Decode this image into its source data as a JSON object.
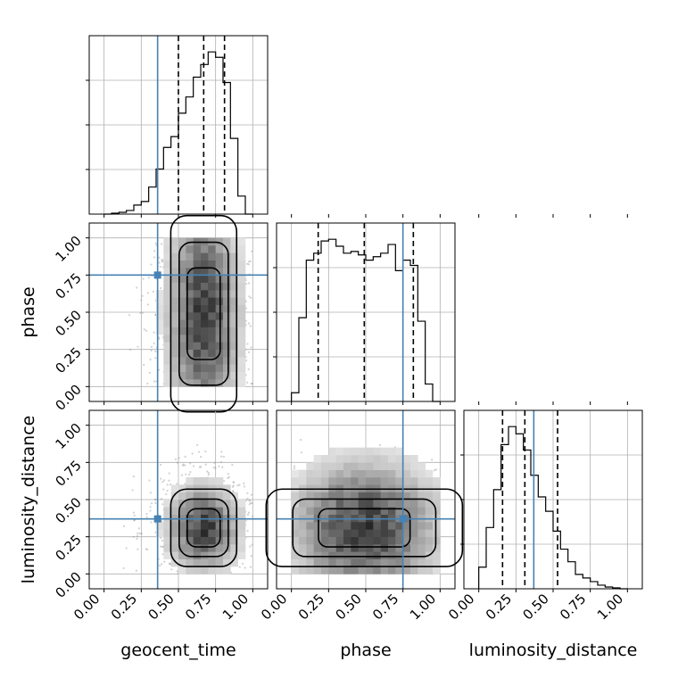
{
  "chart_data": {
    "type": "corner",
    "parameters": [
      "geocent_time",
      "phase",
      "luminosity_distance"
    ],
    "axis_labels": {
      "geocent_time": "geocent_time",
      "phase": "phase",
      "luminosity_distance": "luminosity_distance"
    },
    "ticks": [
      "0.00",
      "0.25",
      "0.50",
      "0.75",
      "1.00"
    ],
    "range": [
      -0.1,
      1.1
    ],
    "truths": {
      "geocent_time": 0.36,
      "phase": 0.75,
      "luminosity_distance": 0.37
    },
    "truth_color": "#4682b4",
    "grid": true,
    "quantiles": {
      "geocent_time": [
        0.5,
        0.67,
        0.81
      ],
      "phase": [
        0.18,
        0.49,
        0.82
      ],
      "luminosity_distance": [
        0.16,
        0.31,
        0.53
      ]
    },
    "marginals": {
      "geocent_time": {
        "edges": [
          0.0,
          0.05,
          0.1,
          0.15,
          0.2,
          0.25,
          0.3,
          0.35,
          0.4,
          0.45,
          0.5,
          0.55,
          0.6,
          0.65,
          0.7,
          0.75,
          0.8,
          0.85,
          0.9,
          0.95,
          1.0
        ],
        "counts": [
          0,
          0.005,
          0.01,
          0.02,
          0.05,
          0.07,
          0.15,
          0.25,
          0.37,
          0.43,
          0.56,
          0.65,
          0.76,
          0.83,
          0.9,
          0.87,
          0.73,
          0.42,
          0.1,
          0
        ]
      },
      "phase": {
        "edges": [
          0.0,
          0.05,
          0.1,
          0.15,
          0.2,
          0.25,
          0.3,
          0.35,
          0.4,
          0.45,
          0.5,
          0.55,
          0.6,
          0.65,
          0.7,
          0.75,
          0.8,
          0.85,
          0.9,
          0.95,
          1.0
        ],
        "counts": [
          0.05,
          0.48,
          0.81,
          0.85,
          0.92,
          0.93,
          0.89,
          0.85,
          0.86,
          0.84,
          0.81,
          0.83,
          0.85,
          0.9,
          0.75,
          0.81,
          0.78,
          0.46,
          0.1,
          0
        ]
      },
      "luminosity_distance": {
        "edges": [
          0.0,
          0.05,
          0.1,
          0.15,
          0.2,
          0.25,
          0.3,
          0.35,
          0.4,
          0.45,
          0.5,
          0.55,
          0.6,
          0.65,
          0.7,
          0.75,
          0.8,
          0.85,
          0.9,
          0.95,
          1.0
        ],
        "counts": [
          0.12,
          0.34,
          0.55,
          0.8,
          0.9,
          0.86,
          0.77,
          0.63,
          0.51,
          0.43,
          0.32,
          0.22,
          0.15,
          0.08,
          0.06,
          0.04,
          0.02,
          0.01,
          0.005,
          0
        ]
      }
    }
  }
}
